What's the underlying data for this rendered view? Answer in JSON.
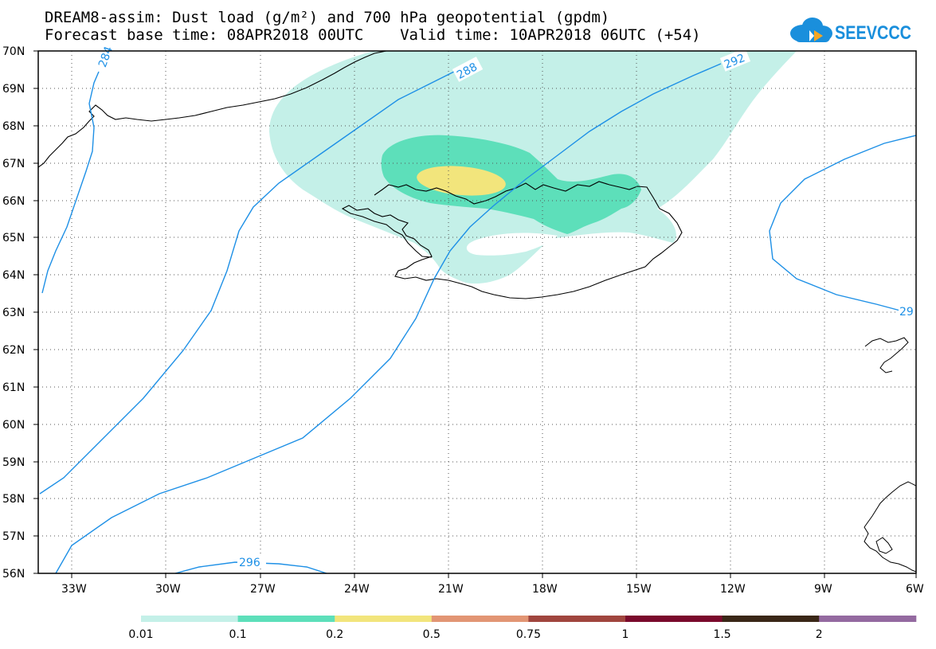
{
  "header": {
    "title_line1": "DREAM8-assim: Dust load (g/m²) and 700 hPa geopotential (gpdm)",
    "title_line2": "Forecast base time: 08APR2018 00UTC    Valid time: 10APR2018 06UTC (+54)",
    "logo_text": "SEEVCCC",
    "logo_icon": "cloud-icon"
  },
  "map": {
    "region": "Iceland and North Atlantic",
    "lat_labels": [
      "70N",
      "69N",
      "68N",
      "67N",
      "66N",
      "65N",
      "64N",
      "63N",
      "62N",
      "61N",
      "60N",
      "59N",
      "58N",
      "57N",
      "56N"
    ],
    "lon_labels": [
      "33W",
      "30W",
      "27W",
      "24W",
      "21W",
      "18W",
      "15W",
      "12W",
      "9W",
      "6W"
    ],
    "lat_range": [
      56,
      70
    ],
    "lon_range": [
      -34.5,
      -6
    ],
    "grid": "dotted",
    "contour_color": "#1e90e6",
    "contour_labels": [
      "284",
      "288",
      "292",
      "296",
      "29"
    ],
    "dust_colors": {
      "0.01-0.1": "#c4f0e8",
      "0.1-0.2": "#5ddfba",
      "0.2-0.5": "#f2e57c"
    }
  },
  "colorbar": {
    "labels": [
      "0.01",
      "0.1",
      "0.2",
      "0.5",
      "0.75",
      "1",
      "1.5",
      "2"
    ],
    "colors": [
      "#c4f0e8",
      "#5ddfba",
      "#f2e57c",
      "#e29574",
      "#a0453e",
      "#7a0a2c",
      "#3a2717",
      "#946aa0"
    ]
  }
}
